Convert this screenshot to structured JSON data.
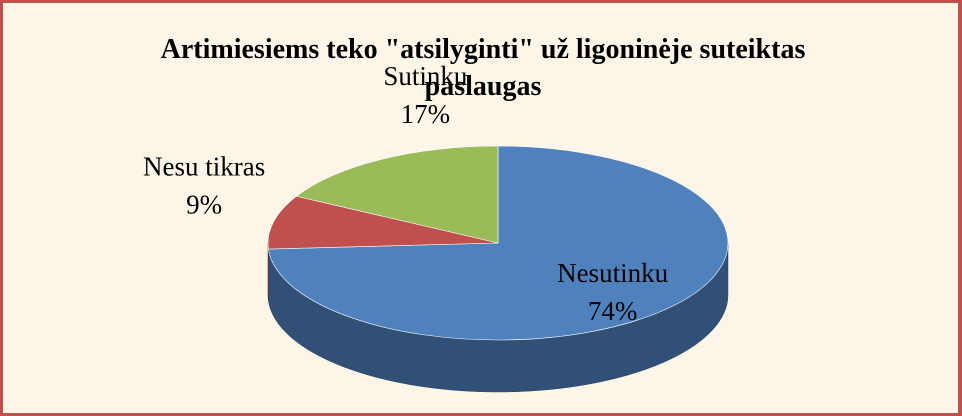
{
  "chart_data": {
    "type": "pie",
    "title": "Artimiesiems teko \"atsilyginti\" už ligoninėje suteiktas paslaugas",
    "categories": [
      "Nesutinku",
      "Nesu tikras",
      "Sutinku"
    ],
    "values": [
      74,
      9,
      17
    ],
    "value_labels": [
      "74%",
      "9%",
      "17%"
    ],
    "colors": [
      "#4f81bd",
      "#c0504d",
      "#9bbb59"
    ]
  }
}
